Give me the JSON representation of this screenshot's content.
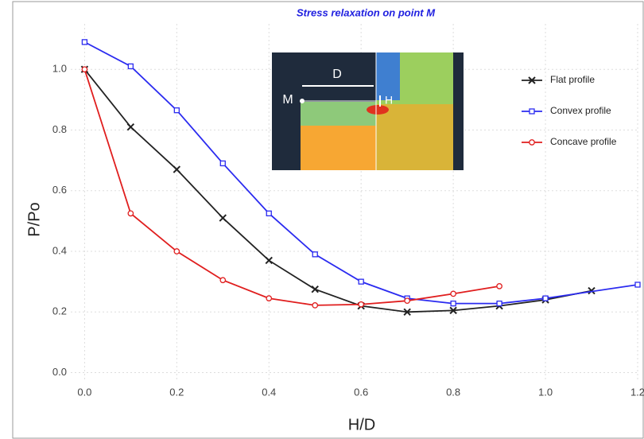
{
  "chart_data": {
    "type": "line",
    "title": "Stress relaxation on point M",
    "x_label": "H/D",
    "y_label": "P/Po",
    "xlim": [
      -0.03,
      1.2
    ],
    "ylim": [
      -0.03,
      1.15
    ],
    "xticks": [
      {
        "value": 0,
        "label": "0.0"
      },
      0.2,
      0.4,
      0.6,
      0.8,
      {
        "value": 1,
        "label": "1.0"
      },
      1.2
    ],
    "yticks": [
      {
        "value": 0,
        "label": "0.0"
      },
      0.2,
      0.4,
      0.6,
      0.8,
      {
        "value": 1,
        "label": "1.0"
      }
    ],
    "grid": true,
    "legend": "upper right",
    "inset_labels": [
      "D",
      "M",
      "H"
    ],
    "series": [
      {
        "name": "Flat profile",
        "color": "#222222",
        "marker": "x",
        "x": [
          0,
          0.1,
          0.2,
          0.3,
          0.4,
          0.5,
          0.6,
          0.7,
          0.8,
          0.9,
          1.0,
          1.1
        ],
        "values": [
          1.0,
          0.81,
          0.67,
          0.51,
          0.37,
          0.275,
          0.22,
          0.2,
          0.205,
          0.22,
          0.24,
          0.27
        ]
      },
      {
        "name": "Convex profile",
        "color": "#2b2bf0",
        "marker": "square",
        "x": [
          0,
          0.1,
          0.2,
          0.3,
          0.4,
          0.5,
          0.6,
          0.7,
          0.8,
          0.9,
          1.0,
          1.2
        ],
        "values": [
          1.09,
          1.01,
          0.865,
          0.69,
          0.525,
          0.39,
          0.3,
          0.245,
          0.228,
          0.228,
          0.245,
          0.29
        ]
      },
      {
        "name": "Concave profile",
        "color": "#e01e1e",
        "marker": "circle",
        "x": [
          0,
          0.1,
          0.2,
          0.3,
          0.4,
          0.5,
          0.6,
          0.7,
          0.8,
          0.9
        ],
        "values": [
          1.0,
          0.525,
          0.4,
          0.305,
          0.245,
          0.222,
          0.225,
          0.237,
          0.26,
          0.285
        ]
      }
    ]
  }
}
